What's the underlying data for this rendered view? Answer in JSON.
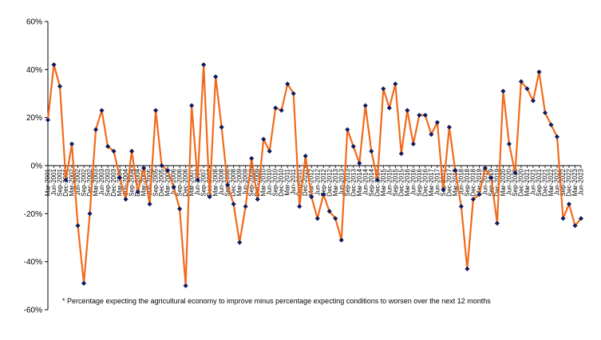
{
  "chart_data": {
    "type": "line",
    "title": "",
    "xlabel": "",
    "ylabel": "",
    "ylim": [
      -60,
      60
    ],
    "yticks": [
      60,
      40,
      20,
      0,
      -20,
      -40,
      -60
    ],
    "ytick_labels": [
      "60%",
      "40%",
      "20%",
      "0%",
      "-20%",
      "-40%",
      "-60%"
    ],
    "grid": false,
    "legend": "none",
    "line_color": "#F26A1B",
    "marker_color": "#0F1A5C",
    "footnote": "* Percentage expecting the agricultural economy to improve minus percentage expecting conditions to worsen over the next 12 months",
    "x": [
      "Mar-2001",
      "Jun-2001",
      "Sep-2001",
      "Dec-2001",
      "Mar-2002",
      "Jun-2002",
      "Sep-2002",
      "Dec-2002",
      "Mar-2003",
      "Jun-2003",
      "Sep-2003",
      "Dec-2003",
      "Mar-2004",
      "Jun-2004",
      "Sep-2004",
      "Dec-2004",
      "Mar-2005",
      "Jun-2005",
      "Sep-2005",
      "Dec-2005",
      "Mar-2006",
      "Jun-2006",
      "Sep-2006",
      "Dec-2006",
      "Mar-2007",
      "Jun-2007",
      "Sep-2007",
      "Dec-2007",
      "Mar-2008",
      "Jun-2008",
      "Sep-2008",
      "Dec-2008",
      "Mar-2009",
      "Jun-2009",
      "Sep-2009",
      "Dec-2009",
      "Mar-2010",
      "Jun-2010",
      "Sep-2010",
      "Dec-2010",
      "Mar-2011",
      "Jun-2011",
      "Sep-2011",
      "Dec-2011",
      "Mar-2012",
      "Jun-2012",
      "Sep-2012",
      "Dec-2012",
      "Mar-2013",
      "Jun-2013",
      "Sep-2013",
      "Dec-2013",
      "Mar-2014",
      "Jun-2014",
      "Sep-2014",
      "Dec-2014",
      "Mar-2015",
      "Jun-2015",
      "Sep-2015",
      "Dec-2015",
      "Mar-2016",
      "Jun-2016",
      "Sep-2016",
      "Dec-2016",
      "Mar-2017",
      "Jun-2017",
      "Sep-2017",
      "Dec-2017",
      "Mar-2018",
      "Jun-2018",
      "Sep-2018",
      "Dec-2018",
      "Mar-2019",
      "Jun-2019",
      "Sep-2019",
      "Dec-2019",
      "Mar-2020",
      "Jun-2020",
      "Sep-2020",
      "Dec-2020",
      "Mar-2021",
      "Jun-2021",
      "Sep-2021",
      "Dec-2021",
      "Mar-2022",
      "Jun-2022",
      "Sep-2022",
      "Dec-2022",
      "Mar-2023",
      "Jun-2023"
    ],
    "x_tick_labels": [
      "Mar-2001",
      "Jun-2001",
      "Sep-2001",
      "Dec-2001",
      "Mar-2002",
      "Jun-2002",
      "Sep-2002",
      "Dec-2002",
      "Mar-2003",
      "Jun-2003",
      "Sep-2003",
      "Dec-2003",
      "Mar-2004",
      "Jun-2004",
      "Sep-2004",
      "Dec-2004",
      "Mar-2005",
      "Jun-2005",
      "Sep-2005",
      "Dec-2005",
      "Mar-2006",
      "Jun-2006",
      "Sep-2006",
      "Dec-2006",
      "Mar-2007",
      "Jun-2007",
      "Sep-2007",
      "Dec-2007",
      "Mar-2008",
      "Jun-2008",
      "Sep-2008",
      "Dec-2008",
      "Mar-2009",
      "Jun-2009",
      "Sep-2009",
      "Dec-2009",
      "Mar-2010",
      "Jun-2010",
      "Sep-2010",
      "Dec-2010",
      "Mar-2011",
      "Jun-2011",
      "Sep-2011",
      "Dec-2011",
      "Mar-2012",
      "Jun-2012",
      "Sep-2012",
      "Dec-2012",
      "Mar-2013",
      "Jun-2013",
      "Sep-2013",
      "Dec-2013",
      "Mar-2014",
      "Jun-2014",
      "Sep-2014",
      "Dec-2014",
      "Mar-2015",
      "Jun-2015",
      "Sep-2015",
      "Dec-2015",
      "Mar-2016",
      "Jun-2016",
      "Sep-2016",
      "Dec-2016",
      "Mar-2017",
      "Jun-2017",
      "Sep-2017",
      "Dec-2017",
      "Mar-2018",
      "Jun-2018",
      "Sep-2018",
      "Dec-2018",
      "Mar-2019",
      "Jun-2019",
      "Sep-2019",
      "Dec-2019",
      "Mar-2020",
      "Jun-2020",
      "Sep-2020",
      "Dec-2020",
      "Mar-2021",
      "Jun-2021",
      "Sep-2021",
      "Dec-2021",
      "Mar-2022",
      "Jun-2022",
      "Sep-2022",
      "Dec-2022",
      "Mar-2023",
      "Jun-2023"
    ],
    "values": [
      19,
      42,
      33,
      -6,
      9,
      -25,
      -49,
      -20,
      15,
      23,
      8,
      6,
      -5,
      -14,
      6,
      -11,
      -1,
      -16,
      23,
      0,
      -2,
      -9,
      -18,
      -50,
      25,
      -6,
      42,
      -13,
      37,
      16,
      -8,
      -16,
      -32,
      -17,
      3,
      -14,
      11,
      6,
      24,
      23,
      34,
      30,
      -17,
      4,
      -13,
      -22,
      -12,
      -19,
      -22,
      -31,
      15,
      8,
      1,
      25,
      6,
      -6,
      32,
      24,
      34,
      5,
      23,
      9,
      21,
      21,
      13,
      18,
      -10,
      16,
      -2,
      -17,
      -43,
      -14,
      -12,
      -1,
      -5,
      -24,
      31,
      9,
      -3,
      35,
      32,
      27,
      39,
      22,
      17,
      12,
      -22,
      -16,
      -25,
      -22
    ]
  }
}
